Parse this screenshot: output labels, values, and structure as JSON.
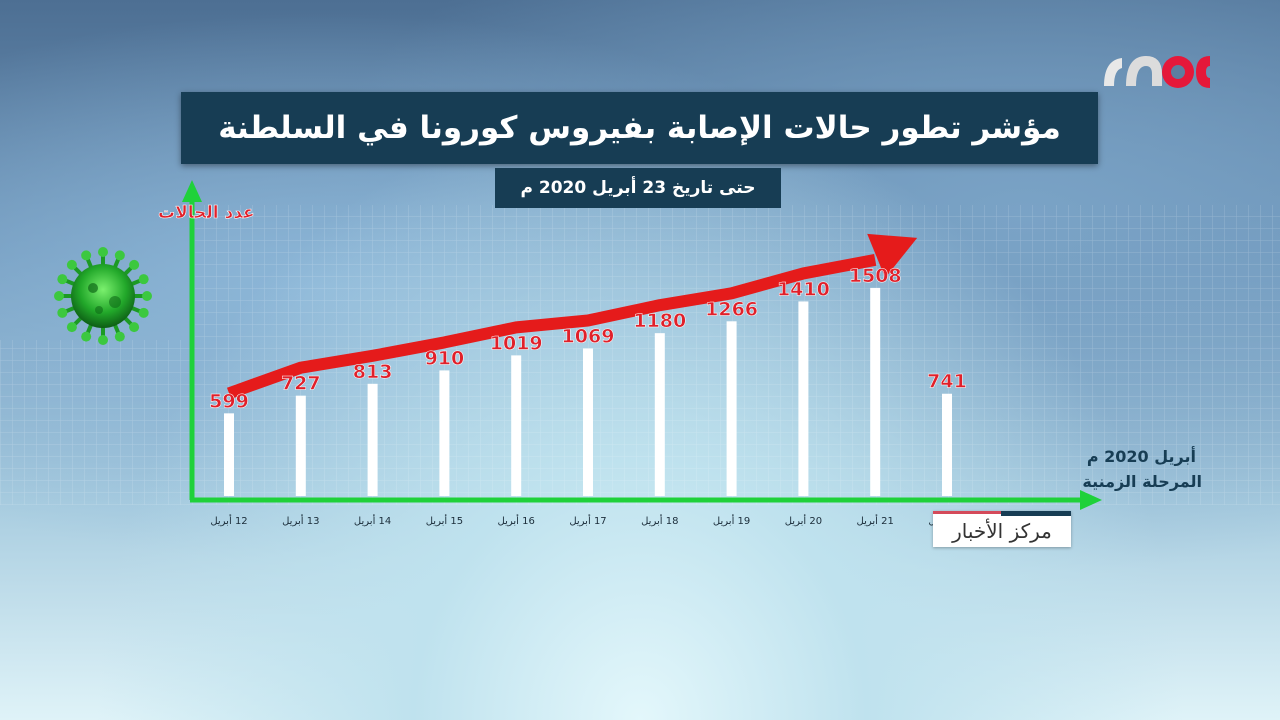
{
  "title": "مؤشر تطور حالات الإصابة بفيروس كورونا في السلطنة",
  "subtitle": "حتى تاريخ 23 أبريل 2020 م",
  "logo_text": "oman",
  "news_tag": "مركز الأخبار",
  "colors": {
    "bar": "#ffffff",
    "value_label": "#e0202a",
    "axis": "#1fd13a",
    "trend_arrow": "#e51b1b",
    "panel": "#173d54"
  },
  "chart_data": {
    "type": "bar",
    "ylabel": "عدد الحالات",
    "xlabel_line1": "أبريل 2020 م",
    "xlabel_line2": "المرحلة الزمنية",
    "categories": [
      "12 أبريل",
      "13 أبريل",
      "14 أبريل",
      "15 أبريل",
      "16 أبريل",
      "17 أبريل",
      "18 أبريل",
      "19 أبريل",
      "20 أبريل",
      "21 أبريل",
      "22 أبريل"
    ],
    "values": [
      599,
      727,
      813,
      910,
      1019,
      1069,
      1180,
      1266,
      1410,
      1508,
      741
    ],
    "ylim": [
      0,
      2000
    ],
    "grid": true,
    "trend_arrow": true,
    "icon": "virus-icon"
  }
}
